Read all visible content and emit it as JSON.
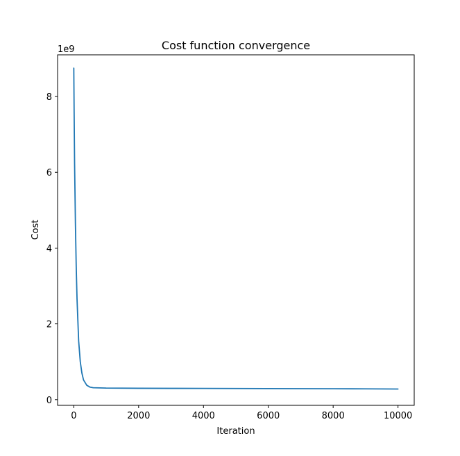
{
  "chart_data": {
    "type": "line",
    "title": "Cost function convergence",
    "xlabel": "Iteration",
    "ylabel": "Cost",
    "y_scale_label": "1e9",
    "xlim": [
      -500,
      10500
    ],
    "ylim": [
      -0.15,
      9.1
    ],
    "y_unit_multiplier": 1000000000,
    "x_ticks": [
      0,
      2000,
      4000,
      6000,
      8000,
      10000
    ],
    "x_tick_labels": [
      "0",
      "2000",
      "4000",
      "6000",
      "8000",
      "10000"
    ],
    "y_ticks": [
      0,
      2,
      4,
      6,
      8
    ],
    "y_tick_labels": [
      "0",
      "2",
      "4",
      "6",
      "8"
    ],
    "grid": false,
    "legend": "none",
    "series": [
      {
        "color": "#1f77b4",
        "x": [
          0,
          10,
          25,
          50,
          75,
          100,
          150,
          200,
          250,
          300,
          400,
          500,
          600,
          800,
          1000,
          2000,
          3000,
          4000,
          5000,
          6000,
          7000,
          8000,
          9000,
          10000
        ],
        "y": [
          8.75,
          7.6,
          6.2,
          4.65,
          3.5,
          2.65,
          1.55,
          1.0,
          0.7,
          0.52,
          0.38,
          0.33,
          0.315,
          0.31,
          0.305,
          0.3,
          0.298,
          0.296,
          0.294,
          0.292,
          0.29,
          0.288,
          0.285,
          0.28
        ]
      }
    ]
  }
}
